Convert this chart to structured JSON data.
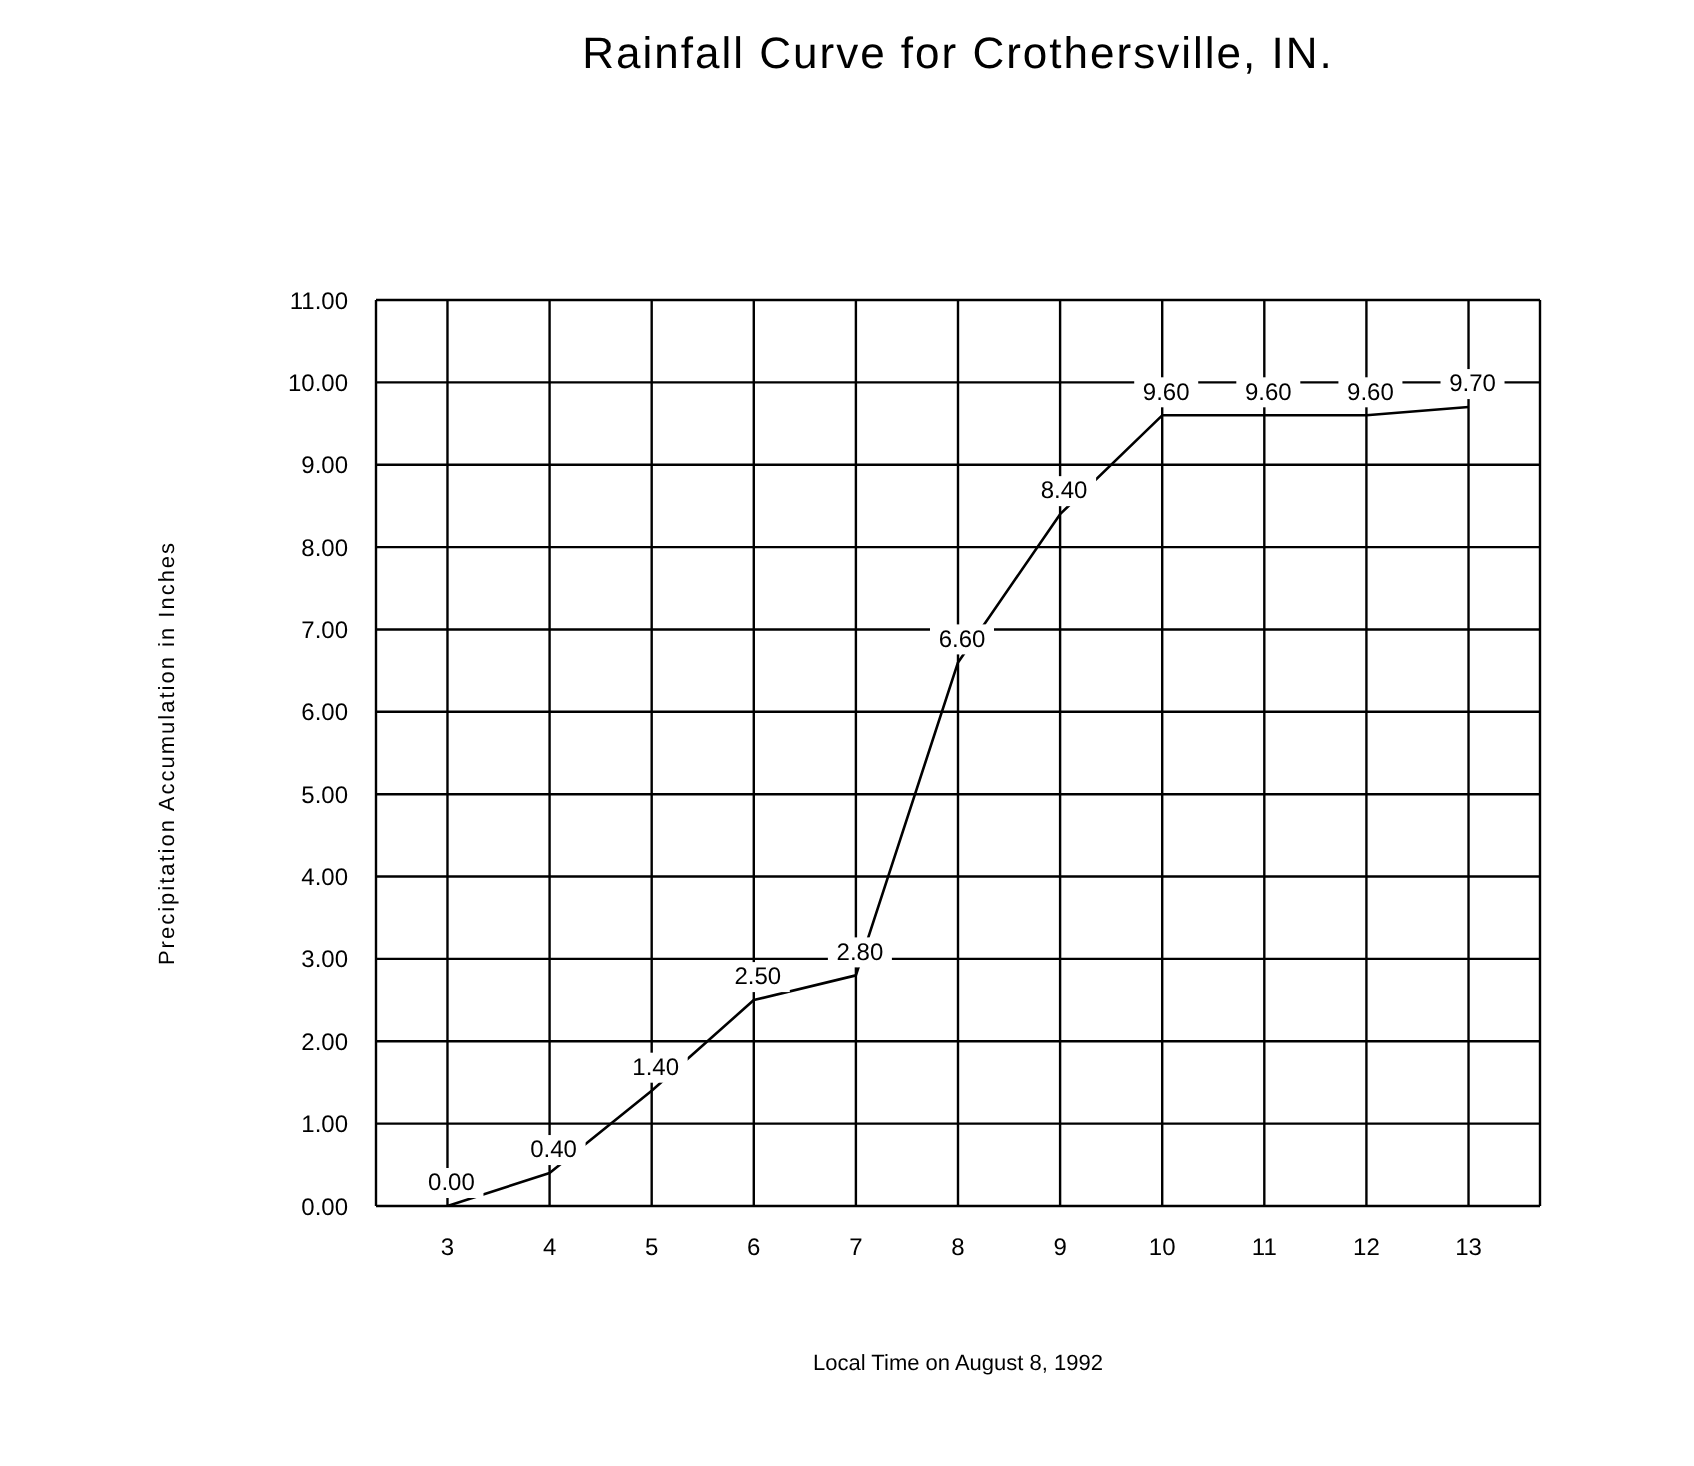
{
  "chart_data": {
    "type": "line",
    "title": "Rainfall Curve for Crothersville, IN.",
    "xlabel": "Local Time on August 8, 1992",
    "ylabel": "Precipitation Accumulation in Inches",
    "x": [
      3,
      4,
      5,
      6,
      7,
      8,
      9,
      10,
      11,
      12,
      13
    ],
    "series": [
      {
        "color": "#000000",
        "values": [
          0,
          0.4,
          1.4,
          2.5,
          2.8,
          6.6,
          8.4,
          9.6,
          9.6,
          9.6,
          9.7
        ],
        "value_labels": [
          "0.00",
          "0.40",
          "1.40",
          "2.50",
          "2.80",
          "6.60",
          "8.40",
          "9.60",
          "9.60",
          "9.60",
          "9.70"
        ]
      }
    ],
    "xlim": [
      2.3,
      13.7
    ],
    "xticks": [
      3,
      4,
      5,
      6,
      7,
      8,
      9,
      10,
      11,
      12,
      13
    ],
    "ylim": [
      0,
      11
    ],
    "yticks": [
      {
        "value": 0,
        "label": "0.00"
      },
      {
        "value": 1,
        "label": "1.00"
      },
      {
        "value": 2,
        "label": "2.00"
      },
      {
        "value": 3,
        "label": "3.00"
      },
      {
        "value": 4,
        "label": "4.00"
      },
      {
        "value": 5,
        "label": "5.00"
      },
      {
        "value": 6,
        "label": "6.00"
      },
      {
        "value": 7,
        "label": "7.00"
      },
      {
        "value": 8,
        "label": "8.00"
      },
      {
        "value": 9,
        "label": "9.00"
      },
      {
        "value": 10,
        "label": "10.00"
      },
      {
        "value": 11,
        "label": "11.00"
      }
    ],
    "grid": true,
    "marker": "none",
    "line_style": "solid",
    "legend": false
  }
}
